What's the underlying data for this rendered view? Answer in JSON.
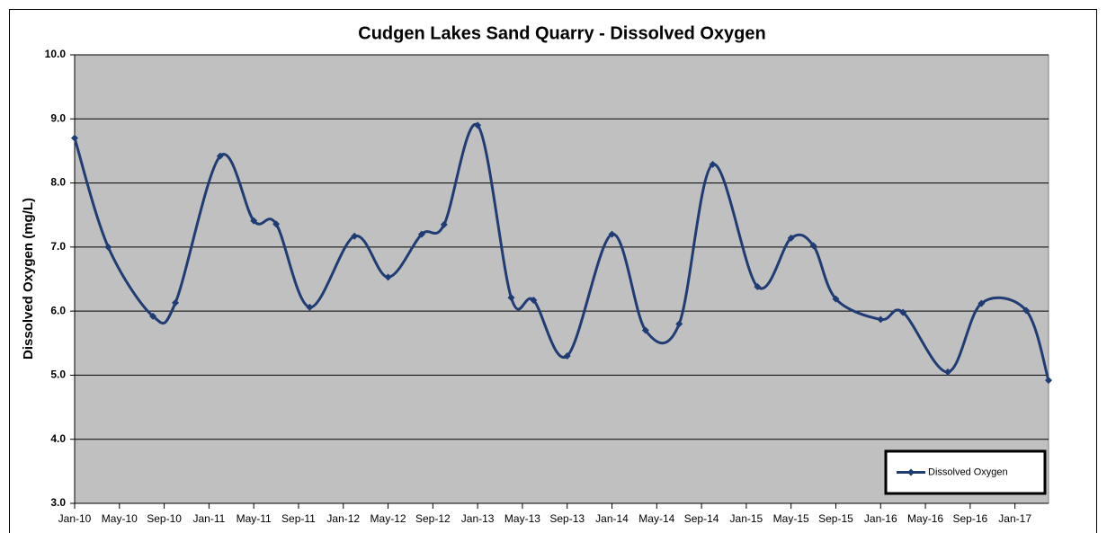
{
  "chart_data": {
    "type": "line",
    "title": "Cudgen Lakes Sand Quarry - Dissolved Oxygen",
    "y_label": "Dissolved Oxygen (mg/L)",
    "x": [
      "2010-01",
      "2010-04",
      "2010-08",
      "2010-10",
      "2011-02",
      "2011-05",
      "2011-07",
      "2011-10",
      "2012-02",
      "2012-05",
      "2012-08",
      "2012-10",
      "2013-01",
      "2013-04",
      "2013-06",
      "2013-09",
      "2014-01",
      "2014-04",
      "2014-07",
      "2014-10",
      "2015-02",
      "2015-05",
      "2015-07",
      "2015-09",
      "2016-01",
      "2016-03",
      "2016-07",
      "2016-10",
      "2017-02",
      "2017-04"
    ],
    "series": [
      {
        "name": "Dissolved Oxygen",
        "color": "#1f3c74",
        "values": [
          8.7,
          7.0,
          5.92,
          6.13,
          8.42,
          7.41,
          7.36,
          6.06,
          7.17,
          6.53,
          7.2,
          7.35,
          8.9,
          6.21,
          6.17,
          5.3,
          7.2,
          5.7,
          5.8,
          8.29,
          6.38,
          7.14,
          7.02,
          6.19,
          5.87,
          5.98,
          5.05,
          6.12,
          6.01,
          4.92
        ]
      }
    ],
    "xlim": [
      "2010-01",
      "2017-04"
    ],
    "xticks": [
      {
        "value": "2010-01",
        "label": "Jan-10"
      },
      {
        "value": "2010-05",
        "label": "May-10"
      },
      {
        "value": "2010-09",
        "label": "Sep-10"
      },
      {
        "value": "2011-01",
        "label": "Jan-11"
      },
      {
        "value": "2011-05",
        "label": "May-11"
      },
      {
        "value": "2011-09",
        "label": "Sep-11"
      },
      {
        "value": "2012-01",
        "label": "Jan-12"
      },
      {
        "value": "2012-05",
        "label": "May-12"
      },
      {
        "value": "2012-09",
        "label": "Sep-12"
      },
      {
        "value": "2013-01",
        "label": "Jan-13"
      },
      {
        "value": "2013-05",
        "label": "May-13"
      },
      {
        "value": "2013-09",
        "label": "Sep-13"
      },
      {
        "value": "2014-01",
        "label": "Jan-14"
      },
      {
        "value": "2014-05",
        "label": "May-14"
      },
      {
        "value": "2014-09",
        "label": "Sep-14"
      },
      {
        "value": "2015-01",
        "label": "Jan-15"
      },
      {
        "value": "2015-05",
        "label": "May-15"
      },
      {
        "value": "2015-09",
        "label": "Sep-15"
      },
      {
        "value": "2016-01",
        "label": "Jan-16"
      },
      {
        "value": "2016-05",
        "label": "May-16"
      },
      {
        "value": "2016-09",
        "label": "Sep-16"
      },
      {
        "value": "2017-01",
        "label": "Jan-17"
      }
    ],
    "ylim": [
      3,
      10
    ],
    "yticks": [
      {
        "value": 3,
        "label": "3.0"
      },
      {
        "value": 4,
        "label": "4.0"
      },
      {
        "value": 5,
        "label": "5.0"
      },
      {
        "value": 6,
        "label": "6.0"
      },
      {
        "value": 7,
        "label": "7.0"
      },
      {
        "value": 8,
        "label": "8.0"
      },
      {
        "value": 9,
        "label": "9.0"
      },
      {
        "value": 10,
        "label": "10.0"
      }
    ],
    "grid": true,
    "smooth": true,
    "legend": "lower right"
  }
}
